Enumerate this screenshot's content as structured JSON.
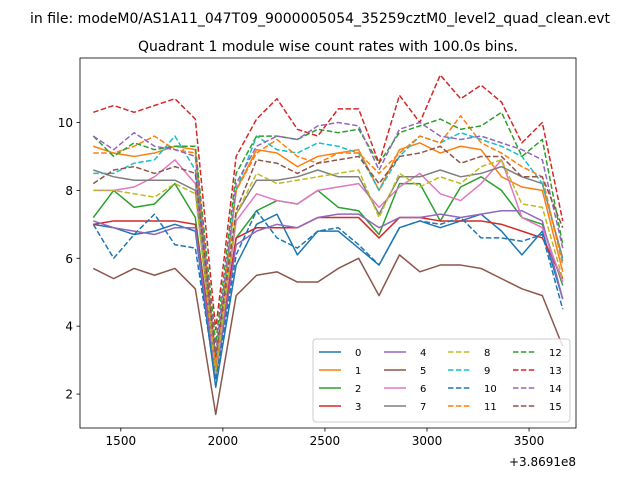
{
  "figure": {
    "suptitle": "in file: modeM0/AS1A11_047T09_9000005054_35259cztM0_level2_quad_clean.evt",
    "title": "Quadrant 1 module wise count rates with 100.0s bins.",
    "x_offset_label": "+3.8691e8"
  },
  "chart_data": {
    "type": "line",
    "title": "Quadrant 1 module wise count rates with 100.0s bins.",
    "xlabel": "",
    "ylabel": "",
    "x_offset": "+3.8691e8",
    "xlim": [
      1300,
      3730
    ],
    "ylim": [
      1.0,
      11.9
    ],
    "xticks": [
      1500,
      2000,
      2500,
      3000,
      3500
    ],
    "yticks": [
      2,
      4,
      6,
      8,
      10
    ],
    "xtick_labels": [
      "1500",
      "2000",
      "2500",
      "3000",
      "3500"
    ],
    "ytick_labels": [
      "2",
      "4",
      "6",
      "8",
      "10"
    ],
    "legend_position": "lower-right",
    "legend_columns": 4,
    "x": [
      1365,
      1465,
      1565,
      1665,
      1765,
      1865,
      1965,
      2065,
      2165,
      2265,
      2365,
      2465,
      2565,
      2665,
      2765,
      2865,
      2965,
      3065,
      3165,
      3265,
      3365,
      3465,
      3565,
      3665
    ],
    "series": [
      {
        "name": "0",
        "color": "#1f77b4",
        "dash": "solid",
        "values": [
          7.0,
          6.9,
          6.7,
          6.8,
          7.0,
          6.8,
          2.2,
          5.8,
          7.0,
          7.3,
          6.1,
          6.8,
          6.8,
          6.3,
          5.8,
          6.9,
          7.1,
          6.9,
          7.1,
          7.3,
          6.8,
          6.1,
          6.8,
          4.8
        ]
      },
      {
        "name": "1",
        "color": "#ff7f0e",
        "dash": "solid",
        "values": [
          9.3,
          9.1,
          9.0,
          9.1,
          9.3,
          9.2,
          3.0,
          8.0,
          9.2,
          9.1,
          8.7,
          9.0,
          9.1,
          9.2,
          8.0,
          9.2,
          9.4,
          9.1,
          9.3,
          9.2,
          8.4,
          8.1,
          8.0,
          5.6
        ]
      },
      {
        "name": "2",
        "color": "#2ca02c",
        "dash": "solid",
        "values": [
          7.2,
          8.0,
          7.5,
          7.6,
          8.2,
          7.2,
          2.6,
          6.6,
          7.4,
          7.7,
          7.6,
          8.0,
          7.5,
          7.4,
          6.7,
          8.2,
          8.2,
          7.1,
          8.1,
          8.4,
          8.0,
          7.2,
          7.0,
          5.2
        ]
      },
      {
        "name": "3",
        "color": "#d62728",
        "dash": "solid",
        "values": [
          7.0,
          7.1,
          7.1,
          7.1,
          7.1,
          7.0,
          2.8,
          6.6,
          6.9,
          6.9,
          6.9,
          7.2,
          7.2,
          7.2,
          6.6,
          7.2,
          7.2,
          7.1,
          7.1,
          7.1,
          7.0,
          6.8,
          6.6,
          5.4
        ]
      },
      {
        "name": "4",
        "color": "#9467bd",
        "dash": "solid",
        "values": [
          7.1,
          6.9,
          6.8,
          6.7,
          6.9,
          6.9,
          2.5,
          6.4,
          6.8,
          7.0,
          6.9,
          7.2,
          7.3,
          7.3,
          6.9,
          7.2,
          7.2,
          7.3,
          7.2,
          7.3,
          7.4,
          7.4,
          7.1,
          4.8
        ]
      },
      {
        "name": "5",
        "color": "#8c564b",
        "dash": "solid",
        "values": [
          5.7,
          5.4,
          5.7,
          5.5,
          5.7,
          5.1,
          1.4,
          4.9,
          5.5,
          5.6,
          5.3,
          5.3,
          5.7,
          6.0,
          4.9,
          6.1,
          5.6,
          5.8,
          5.8,
          5.7,
          5.4,
          5.1,
          4.9,
          3.4
        ]
      },
      {
        "name": "6",
        "color": "#e377c2",
        "dash": "solid",
        "values": [
          8.0,
          8.0,
          8.1,
          8.4,
          8.9,
          8.2,
          2.6,
          7.1,
          7.9,
          7.7,
          7.6,
          8.0,
          8.1,
          8.2,
          7.5,
          8.1,
          8.5,
          7.9,
          7.7,
          8.2,
          8.9,
          7.2,
          6.9,
          5.3
        ]
      },
      {
        "name": "7",
        "color": "#7f7f7f",
        "dash": "solid",
        "values": [
          8.6,
          8.4,
          8.3,
          8.3,
          8.3,
          8.0,
          2.7,
          7.3,
          8.3,
          8.3,
          8.4,
          8.6,
          8.4,
          8.4,
          7.3,
          8.4,
          8.4,
          8.6,
          8.4,
          8.5,
          8.7,
          8.4,
          8.2,
          6.0
        ]
      },
      {
        "name": "8",
        "color": "#bcbd22",
        "dash": "dashed",
        "values": [
          8.0,
          8.0,
          7.9,
          7.8,
          8.2,
          7.9,
          2.6,
          7.3,
          8.5,
          8.2,
          8.3,
          8.4,
          8.5,
          8.6,
          7.2,
          8.5,
          8.1,
          8.4,
          8.2,
          8.7,
          8.9,
          7.6,
          7.5,
          5.4
        ]
      },
      {
        "name": "9",
        "color": "#17becf",
        "dash": "dashed",
        "values": [
          8.5,
          8.5,
          8.8,
          8.9,
          9.6,
          8.6,
          3.0,
          8.0,
          9.6,
          9.2,
          9.1,
          9.4,
          9.3,
          9.1,
          8.0,
          9.0,
          9.6,
          9.4,
          9.7,
          9.5,
          9.3,
          9.0,
          8.2,
          5.9
        ]
      },
      {
        "name": "10",
        "color": "#1f77b4",
        "dash": "dashed",
        "values": [
          7.0,
          6.0,
          6.7,
          7.3,
          6.4,
          6.3,
          2.4,
          6.1,
          7.4,
          6.6,
          6.3,
          6.8,
          6.9,
          6.4,
          5.8,
          6.9,
          7.1,
          7.0,
          7.2,
          6.6,
          6.6,
          6.5,
          6.7,
          4.5
        ]
      },
      {
        "name": "11",
        "color": "#ff7f0e",
        "dash": "dashed",
        "values": [
          9.1,
          9.1,
          9.3,
          9.6,
          9.2,
          9.1,
          2.8,
          8.0,
          9.1,
          9.5,
          9.0,
          8.8,
          9.1,
          9.1,
          8.5,
          9.1,
          9.6,
          9.4,
          10.2,
          9.4,
          9.1,
          8.7,
          8.4,
          5.8
        ]
      },
      {
        "name": "12",
        "color": "#2ca02c",
        "dash": "dashed",
        "values": [
          9.6,
          9.0,
          9.4,
          9.2,
          9.3,
          9.3,
          3.5,
          8.5,
          9.6,
          9.6,
          9.5,
          9.8,
          9.7,
          9.8,
          8.8,
          9.7,
          9.9,
          10.1,
          9.8,
          9.9,
          10.3,
          9.0,
          9.5,
          6.4
        ]
      },
      {
        "name": "13",
        "color": "#d62728",
        "dash": "dashed",
        "values": [
          10.3,
          10.5,
          10.3,
          10.5,
          10.7,
          10.1,
          3.9,
          9.0,
          10.1,
          10.7,
          9.8,
          9.6,
          10.4,
          10.4,
          8.8,
          10.8,
          10.0,
          11.4,
          10.7,
          11.1,
          10.6,
          9.4,
          10.0,
          7.1
        ]
      },
      {
        "name": "14",
        "color": "#9467bd",
        "dash": "dashed",
        "values": [
          9.6,
          9.2,
          9.7,
          9.3,
          9.2,
          9.0,
          3.2,
          8.2,
          9.3,
          9.6,
          9.5,
          9.9,
          10.0,
          9.9,
          8.6,
          9.8,
          10.0,
          9.6,
          9.5,
          9.6,
          9.4,
          9.2,
          8.9,
          6.3
        ]
      },
      {
        "name": "15",
        "color": "#8c564b",
        "dash": "dashed",
        "values": [
          8.2,
          8.6,
          8.7,
          8.5,
          8.7,
          8.5,
          3.1,
          7.4,
          8.9,
          8.8,
          8.5,
          8.8,
          8.9,
          9.0,
          8.2,
          9.0,
          9.1,
          9.3,
          8.8,
          9.0,
          9.0,
          8.4,
          8.4,
          6.9
        ]
      }
    ]
  }
}
